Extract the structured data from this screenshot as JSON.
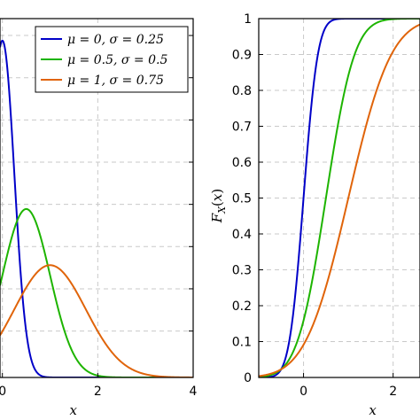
{
  "chart_data": [
    {
      "type": "line",
      "title": "",
      "xlabel": "x",
      "ylabel": "",
      "xlim": [
        -0.05,
        4
      ],
      "ylim": [
        0,
        1.7
      ],
      "xticks": [
        "0",
        "2",
        "4"
      ],
      "yticks": [],
      "grid": true,
      "legend": "top-right",
      "series": [
        {
          "name": "μ = 0, σ = 0.25",
          "color": "#0000c8",
          "mu": 0,
          "sigma": 0.25,
          "x": [
            -0.05,
            0,
            0.1,
            0.2,
            0.3,
            0.4,
            0.5,
            0.6,
            0.8,
            1.0,
            4.0
          ],
          "y": [
            1.55,
            1.6,
            1.47,
            1.16,
            0.78,
            0.44,
            0.22,
            0.09,
            0.01,
            0.0,
            0.0
          ]
        },
        {
          "name": "μ = 0.5, σ = 0.5",
          "color": "#1db400",
          "mu": 0.5,
          "sigma": 0.5,
          "x": [
            -0.05,
            0,
            0.25,
            0.5,
            0.75,
            1.0,
            1.5,
            2.0,
            2.5,
            3.0,
            4.0
          ],
          "y": [
            0.44,
            0.48,
            0.7,
            0.8,
            0.7,
            0.48,
            0.11,
            0.01,
            0.0,
            0.0,
            0.0
          ]
        },
        {
          "name": "μ = 1, σ = 0.75",
          "color": "#e0640a",
          "mu": 1,
          "sigma": 0.75,
          "x": [
            -0.05,
            0,
            0.5,
            1.0,
            1.5,
            2.0,
            2.5,
            3.0,
            3.5,
            4.0
          ],
          "y": [
            0.2,
            0.22,
            0.42,
            0.53,
            0.42,
            0.22,
            0.07,
            0.02,
            0.0,
            0.0
          ]
        }
      ]
    },
    {
      "type": "line",
      "title": "",
      "xlabel": "x",
      "ylabel": "F_X(x)",
      "xlim": [
        -1,
        2.6
      ],
      "ylim": [
        0,
        1
      ],
      "xticks": [
        "0",
        "2"
      ],
      "yticks": [
        "0",
        "0.1",
        "0.2",
        "0.3",
        "0.4",
        "0.5",
        "0.6",
        "0.7",
        "0.8",
        "0.9",
        "1"
      ],
      "grid": true,
      "legend": "none",
      "series": [
        {
          "name": "μ = 0, σ = 0.25",
          "color": "#0000c8",
          "mu": 0,
          "sigma": 0.25,
          "x": [
            -1,
            -0.5,
            -0.25,
            0,
            0.25,
            0.5,
            0.75,
            2.6
          ],
          "y": [
            0.0,
            0.02,
            0.16,
            0.5,
            0.84,
            0.98,
            1.0,
            1.0
          ]
        },
        {
          "name": "μ = 0.5, σ = 0.5",
          "color": "#1db400",
          "mu": 0.5,
          "sigma": 0.5,
          "x": [
            -1,
            -0.5,
            0,
            0.5,
            1.0,
            1.5,
            2.0,
            2.6
          ],
          "y": [
            0.0,
            0.02,
            0.16,
            0.5,
            0.84,
            0.98,
            1.0,
            1.0
          ]
        },
        {
          "name": "μ = 1, σ = 0.75",
          "color": "#e0640a",
          "mu": 1,
          "sigma": 0.75,
          "x": [
            -1,
            -0.5,
            0,
            0.5,
            1.0,
            1.5,
            2.0,
            2.5,
            2.6
          ],
          "y": [
            0.0,
            0.02,
            0.09,
            0.25,
            0.5,
            0.75,
            0.91,
            0.98,
            0.98
          ]
        }
      ]
    }
  ]
}
